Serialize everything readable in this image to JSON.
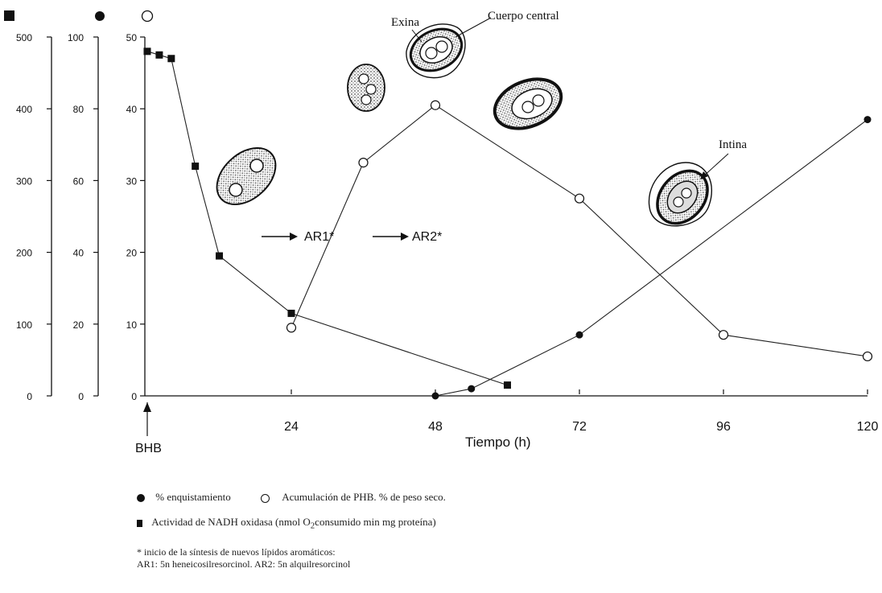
{
  "chart_data": {
    "type": "line",
    "title": "",
    "xlabel": "Tiempo (h)",
    "x_ticks": [
      "24",
      "48",
      "72",
      "96",
      "120"
    ],
    "x_start_label": "BHB",
    "xlim": [
      0,
      120
    ],
    "axes": [
      {
        "symbol": "square-icon",
        "ticks": [
          "0",
          "100",
          "200",
          "300",
          "400",
          "500"
        ],
        "ylim": [
          0,
          500
        ]
      },
      {
        "symbol": "filled-circle-icon",
        "ticks": [
          "0",
          "20",
          "40",
          "60",
          "80",
          "100"
        ],
        "ylim": [
          0,
          100
        ]
      },
      {
        "symbol": "open-circle-icon",
        "ticks": [
          "0",
          "10",
          "20",
          "30",
          "40",
          "50"
        ],
        "ylim": [
          0,
          50
        ]
      }
    ],
    "series": [
      {
        "name": "Actividad de NADH oxidasa",
        "marker": "square",
        "axis": 0,
        "x": [
          0,
          2,
          4,
          8,
          12,
          24,
          60
        ],
        "y": [
          480,
          475,
          470,
          320,
          195,
          115,
          15
        ]
      },
      {
        "name": "% enquistamiento",
        "marker": "filled-circle",
        "axis": 1,
        "x": [
          48,
          54,
          72,
          120
        ],
        "y": [
          0,
          2,
          17,
          77
        ]
      },
      {
        "name": "Acumulación de PHB",
        "marker": "open-circle",
        "axis": 2,
        "x": [
          24,
          36,
          48,
          72,
          96,
          120
        ],
        "y": [
          9.5,
          32.5,
          40.5,
          27.5,
          8.5,
          5.5
        ]
      }
    ],
    "annotations": {
      "ar1": "AR1*",
      "ar2": "AR2*",
      "exina": "Exina",
      "cuerpo_central": "Cuerpo central",
      "intina": "Intina"
    },
    "legend": {
      "line1_a": "% enquistamiento",
      "line1_b": "Acumulación de PHB. % de peso seco.",
      "line2_a": "Actividad de NADH oxidasa (nmol O",
      "line2_sub": "2",
      "line2_b": " consumido min mg proteína)",
      "note1": "* inicio de la síntesis de nuevos lípidos aromáticos:",
      "note2": "AR1: 5n heneicosilresorcinol. AR2: 5n alquilresorcinol"
    }
  }
}
